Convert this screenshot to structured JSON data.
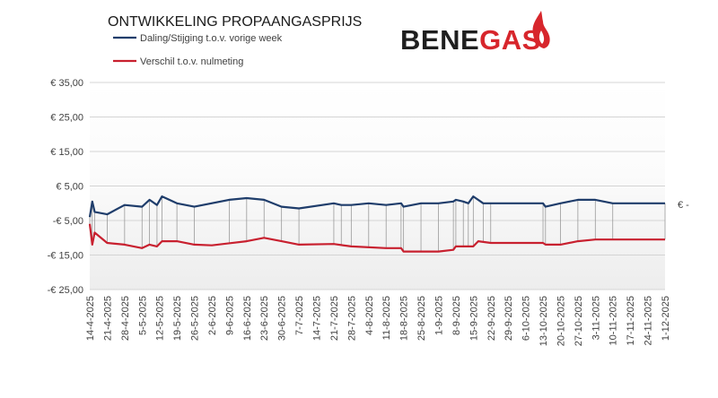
{
  "title": "ONTWIKKELING PROPAANGASPRIJS",
  "logo": {
    "text": "BENEGAS",
    "icon": "flame-icon",
    "color": "#1f1f1f",
    "flame_color": "#d7262c"
  },
  "legend": {
    "position": "top-left",
    "items": [
      {
        "label": "Daling/Stijging t.o.v. vorige week",
        "color": "#1f3d6b"
      },
      {
        "label": "Verschil t.o.v. nulmeting",
        "color": "#c8202f"
      }
    ]
  },
  "chart_data": {
    "type": "line",
    "ylim": [
      -25,
      35
    ],
    "yticks": [
      35,
      25,
      15,
      5,
      -5,
      -15,
      -25
    ],
    "ytick_labels": [
      "€ 35,00",
      "€ 25,00",
      "€ 15,00",
      "€ 5,00",
      "-€ 5,00",
      "-€ 15,00",
      "-€ 25,00"
    ],
    "right_zero_label": "€ -",
    "grid": true,
    "x_labels": [
      "14-4-2025",
      "21-4-2025",
      "28-4-2025",
      "5-5-2025",
      "12-5-2025",
      "19-5-2025",
      "26-5-2025",
      "2-6-2025",
      "9-6-2025",
      "16-6-2025",
      "23-6-2025",
      "30-6-2025",
      "7-7-2025",
      "14-7-2025",
      "21-7-2025",
      "28-7-2025",
      "4-8-2025",
      "11-8-2025",
      "18-8-2025",
      "25-8-2025",
      "1-9-2025",
      "8-9-2025",
      "15-9-2025",
      "22-9-2025",
      "29-9-2025",
      "6-10-2025",
      "13-10-2025",
      "20-10-2025",
      "27-10-2025",
      "3-11-2025",
      "10-11-2025",
      "17-11-2025",
      "24-11-2025",
      "1-12-2025"
    ],
    "x_start": "2025-04-14",
    "x_end": "2025-12-01",
    "series": [
      {
        "name": "Daling/Stijging t.o.v. vorige week",
        "color": "#1f3d6b",
        "points": [
          [
            "2025-04-14",
            -4.0
          ],
          [
            "2025-04-15",
            0.5
          ],
          [
            "2025-04-16",
            -2.5
          ],
          [
            "2025-04-21",
            -3.2
          ],
          [
            "2025-04-28",
            -0.5
          ],
          [
            "2025-05-05",
            -1.0
          ],
          [
            "2025-05-08",
            1.0
          ],
          [
            "2025-05-11",
            -0.5
          ],
          [
            "2025-05-13",
            2.0
          ],
          [
            "2025-05-19",
            0.0
          ],
          [
            "2025-05-26",
            -1.0
          ],
          [
            "2025-06-09",
            1.0
          ],
          [
            "2025-06-16",
            1.5
          ],
          [
            "2025-06-23",
            1.0
          ],
          [
            "2025-06-30",
            -1.0
          ],
          [
            "2025-07-07",
            -1.5
          ],
          [
            "2025-07-21",
            0.0
          ],
          [
            "2025-07-24",
            -0.5
          ],
          [
            "2025-07-28",
            -0.5
          ],
          [
            "2025-08-04",
            0.0
          ],
          [
            "2025-08-11",
            -0.5
          ],
          [
            "2025-08-17",
            0.0
          ],
          [
            "2025-08-18",
            -1.0
          ],
          [
            "2025-08-25",
            0.0
          ],
          [
            "2025-09-01",
            0.0
          ],
          [
            "2025-09-07",
            0.5
          ],
          [
            "2025-09-08",
            1.0
          ],
          [
            "2025-09-11",
            0.5
          ],
          [
            "2025-09-13",
            0.0
          ],
          [
            "2025-09-15",
            2.0
          ],
          [
            "2025-09-19",
            0.0
          ],
          [
            "2025-09-22",
            0.0
          ],
          [
            "2025-10-13",
            0.0
          ],
          [
            "2025-10-14",
            -1.0
          ],
          [
            "2025-10-20",
            0.0
          ],
          [
            "2025-10-27",
            1.0
          ],
          [
            "2025-11-03",
            1.0
          ],
          [
            "2025-11-10",
            0.0
          ],
          [
            "2025-12-01",
            0.0
          ]
        ]
      },
      {
        "name": "Verschil t.o.v. nulmeting",
        "color": "#c8202f",
        "points": [
          [
            "2025-04-14",
            -6.0
          ],
          [
            "2025-04-15",
            -12.0
          ],
          [
            "2025-04-16",
            -8.5
          ],
          [
            "2025-04-21",
            -11.5
          ],
          [
            "2025-04-28",
            -12.0
          ],
          [
            "2025-05-05",
            -13.0
          ],
          [
            "2025-05-08",
            -12.0
          ],
          [
            "2025-05-11",
            -12.5
          ],
          [
            "2025-05-13",
            -11.0
          ],
          [
            "2025-05-19",
            -11.0
          ],
          [
            "2025-05-26",
            -12.0
          ],
          [
            "2025-06-02",
            -12.2
          ],
          [
            "2025-06-16",
            -11.0
          ],
          [
            "2025-06-23",
            -10.0
          ],
          [
            "2025-06-30",
            -11.0
          ],
          [
            "2025-07-07",
            -12.0
          ],
          [
            "2025-07-21",
            -11.8
          ],
          [
            "2025-07-28",
            -12.5
          ],
          [
            "2025-08-11",
            -13.0
          ],
          [
            "2025-08-17",
            -13.0
          ],
          [
            "2025-08-18",
            -14.0
          ],
          [
            "2025-09-01",
            -14.0
          ],
          [
            "2025-09-07",
            -13.5
          ],
          [
            "2025-09-08",
            -12.5
          ],
          [
            "2025-09-15",
            -12.5
          ],
          [
            "2025-09-17",
            -11.0
          ],
          [
            "2025-09-22",
            -11.5
          ],
          [
            "2025-10-13",
            -11.5
          ],
          [
            "2025-10-14",
            -12.0
          ],
          [
            "2025-10-20",
            -12.0
          ],
          [
            "2025-10-27",
            -11.0
          ],
          [
            "2025-11-03",
            -10.5
          ],
          [
            "2025-12-01",
            -10.5
          ]
        ]
      }
    ]
  }
}
